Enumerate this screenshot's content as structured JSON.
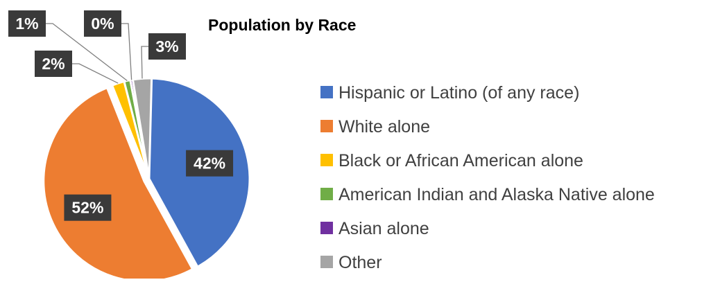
{
  "chart_data": {
    "type": "pie",
    "title": "Population by Race",
    "legend_position": "right",
    "slices": [
      {
        "name": "Hispanic or Latino (of any race)",
        "value": 42,
        "label": "42%",
        "color": "#4472C4"
      },
      {
        "name": "White alone",
        "value": 52,
        "label": "52%",
        "color": "#ED7D31"
      },
      {
        "name": "Black or African American alone",
        "value": 2,
        "label": "2%",
        "color": "#FFC000"
      },
      {
        "name": "American Indian and Alaska Native alone",
        "value": 1,
        "label": "1%",
        "color": "#70AD47"
      },
      {
        "name": "Asian alone",
        "value": 0,
        "label": "0%",
        "color": "#7030A0"
      },
      {
        "name": "Other",
        "value": 3,
        "label": "3%",
        "color": "#A5A5A5"
      }
    ]
  }
}
